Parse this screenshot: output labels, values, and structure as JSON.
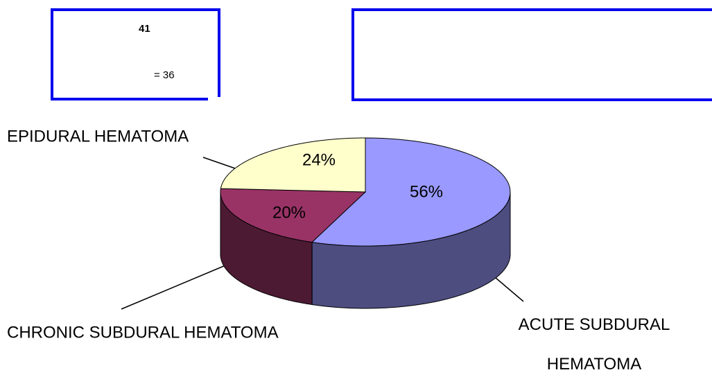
{
  "header": {
    "box_title": "41",
    "box_note": "= 36"
  },
  "chart_data": {
    "type": "pie",
    "categories": [
      "ACUTE SUBDURAL HEMATOMA",
      "CHRONIC SUBDURAL HEMATOMA",
      "EPIDURAL HEMATOMA"
    ],
    "values": [
      56,
      20,
      24
    ],
    "value_labels": [
      "56%",
      "20%",
      "24%"
    ],
    "colors": [
      "#9999ff",
      "#993366",
      "#ffffcc"
    ],
    "side_colors": [
      "#4d4d80",
      "#4d1a33",
      "#80806a"
    ]
  }
}
